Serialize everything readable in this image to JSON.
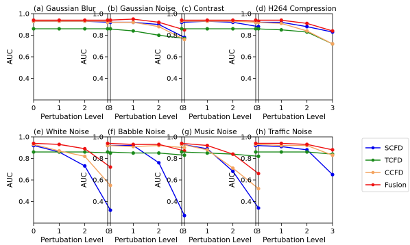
{
  "chart_data": [
    {
      "type": "line",
      "title": "(a) Gaussian Blur",
      "xlabel": "Pertubation Level",
      "ylabel": "AUC",
      "x": [
        0,
        1,
        2,
        3
      ],
      "xlim": [
        0,
        3
      ],
      "ylim": [
        0.2,
        1.0
      ],
      "yticks": [
        0.4,
        0.6,
        0.8,
        1.0
      ],
      "series": [
        {
          "name": "SCFD",
          "values": [
            0.93,
            0.93,
            0.93,
            0.92
          ]
        },
        {
          "name": "TCFD",
          "values": [
            0.86,
            0.86,
            0.86,
            0.86
          ]
        },
        {
          "name": "CCFD",
          "values": [
            0.93,
            0.93,
            0.93,
            0.93
          ]
        },
        {
          "name": "Fusion",
          "values": [
            0.94,
            0.94,
            0.94,
            0.94
          ]
        }
      ]
    },
    {
      "type": "line",
      "title": "(b) Gaussian Noise",
      "xlabel": "Pertubation Level",
      "ylabel": "AUC",
      "x": [
        0,
        1,
        2,
        3
      ],
      "xlim": [
        0,
        3
      ],
      "ylim": [
        0.2,
        1.0
      ],
      "yticks": [
        0.4,
        0.6,
        0.8,
        1.0
      ],
      "series": [
        {
          "name": "SCFD",
          "values": [
            0.92,
            0.92,
            0.9,
            0.78
          ]
        },
        {
          "name": "TCFD",
          "values": [
            0.86,
            0.84,
            0.8,
            0.77
          ]
        },
        {
          "name": "CCFD",
          "values": [
            0.92,
            0.92,
            0.88,
            0.76
          ]
        },
        {
          "name": "Fusion",
          "values": [
            0.94,
            0.95,
            0.92,
            0.85
          ]
        }
      ]
    },
    {
      "type": "line",
      "title": "(c) Contrast",
      "xlabel": "Pertubation Level",
      "ylabel": "AUC",
      "x": [
        0,
        1,
        2,
        3
      ],
      "xlim": [
        0,
        3
      ],
      "ylim": [
        0.2,
        1.0
      ],
      "yticks": [
        0.4,
        0.6,
        0.8,
        1.0
      ],
      "series": [
        {
          "name": "SCFD",
          "values": [
            0.92,
            0.93,
            0.92,
            0.88
          ]
        },
        {
          "name": "TCFD",
          "values": [
            0.86,
            0.86,
            0.86,
            0.86
          ]
        },
        {
          "name": "CCFD",
          "values": [
            0.93,
            0.93,
            0.93,
            0.92
          ]
        },
        {
          "name": "Fusion",
          "values": [
            0.94,
            0.94,
            0.94,
            0.93
          ]
        }
      ]
    },
    {
      "type": "line",
      "title": "(d) H264 Compression",
      "xlabel": "Pertubation Level",
      "ylabel": "AUC",
      "x": [
        0,
        1,
        2,
        3
      ],
      "xlim": [
        0,
        3
      ],
      "ylim": [
        0.2,
        1.0
      ],
      "yticks": [
        0.4,
        0.6,
        0.8,
        1.0
      ],
      "series": [
        {
          "name": "SCFD",
          "values": [
            0.92,
            0.92,
            0.88,
            0.83
          ]
        },
        {
          "name": "TCFD",
          "values": [
            0.86,
            0.85,
            0.83,
            0.72
          ]
        },
        {
          "name": "CCFD",
          "values": [
            0.92,
            0.91,
            0.84,
            0.72
          ]
        },
        {
          "name": "Fusion",
          "values": [
            0.94,
            0.94,
            0.91,
            0.84
          ]
        }
      ]
    },
    {
      "type": "line",
      "title": "(e) White Noise",
      "xlabel": "Pertubation Level",
      "ylabel": "AUC",
      "x": [
        0,
        1,
        2,
        3
      ],
      "xlim": [
        0,
        3
      ],
      "ylim": [
        0.2,
        1.0
      ],
      "yticks": [
        0.4,
        0.6,
        0.8,
        1.0
      ],
      "series": [
        {
          "name": "SCFD",
          "values": [
            0.92,
            0.86,
            0.73,
            0.32
          ]
        },
        {
          "name": "TCFD",
          "values": [
            0.86,
            0.86,
            0.86,
            0.85
          ]
        },
        {
          "name": "CCFD",
          "values": [
            0.93,
            0.87,
            0.82,
            0.55
          ]
        },
        {
          "name": "Fusion",
          "values": [
            0.94,
            0.93,
            0.89,
            0.72
          ]
        }
      ]
    },
    {
      "type": "line",
      "title": "(f) Babble Noise",
      "xlabel": "Pertubation Level",
      "ylabel": "AUC",
      "x": [
        0,
        1,
        2,
        3
      ],
      "xlim": [
        0,
        3
      ],
      "ylim": [
        0.2,
        1.0
      ],
      "yticks": [
        0.4,
        0.6,
        0.8,
        1.0
      ],
      "series": [
        {
          "name": "SCFD",
          "values": [
            0.92,
            0.92,
            0.76,
            0.27
          ]
        },
        {
          "name": "TCFD",
          "values": [
            0.86,
            0.85,
            0.85,
            0.83
          ]
        },
        {
          "name": "CCFD",
          "values": [
            0.92,
            0.91,
            0.92,
            0.9
          ]
        },
        {
          "name": "Fusion",
          "values": [
            0.94,
            0.93,
            0.93,
            0.87
          ]
        }
      ]
    },
    {
      "type": "line",
      "title": "(g) Music Noise",
      "xlabel": "Pertubation Level",
      "ylabel": "AUC",
      "x": [
        0,
        1,
        2,
        3
      ],
      "xlim": [
        0,
        3
      ],
      "ylim": [
        0.2,
        1.0
      ],
      "yticks": [
        0.4,
        0.6,
        0.8,
        1.0
      ],
      "series": [
        {
          "name": "SCFD",
          "values": [
            0.93,
            0.89,
            0.68,
            0.34
          ]
        },
        {
          "name": "TCFD",
          "values": [
            0.86,
            0.85,
            0.84,
            0.82
          ]
        },
        {
          "name": "CCFD",
          "values": [
            0.93,
            0.88,
            0.71,
            0.52
          ]
        },
        {
          "name": "Fusion",
          "values": [
            0.94,
            0.92,
            0.84,
            0.66
          ]
        }
      ]
    },
    {
      "type": "line",
      "title": "(h) Traffic Noise",
      "xlabel": "Pertubation Level",
      "ylabel": "AUC",
      "x": [
        0,
        1,
        2,
        3
      ],
      "xlim": [
        0,
        3
      ],
      "ylim": [
        0.2,
        1.0
      ],
      "yticks": [
        0.4,
        0.6,
        0.8,
        1.0
      ],
      "series": [
        {
          "name": "SCFD",
          "values": [
            0.92,
            0.91,
            0.88,
            0.65
          ]
        },
        {
          "name": "TCFD",
          "values": [
            0.86,
            0.86,
            0.86,
            0.84
          ]
        },
        {
          "name": "CCFD",
          "values": [
            0.93,
            0.92,
            0.92,
            0.83
          ]
        },
        {
          "name": "Fusion",
          "values": [
            0.94,
            0.94,
            0.93,
            0.88
          ]
        }
      ]
    }
  ],
  "legend": {
    "placement": "right",
    "entries": [
      {
        "name": "SCFD",
        "color": "#0000ee"
      },
      {
        "name": "TCFD",
        "color": "#1a8a1a"
      },
      {
        "name": "CCFD",
        "color": "#f4a460"
      },
      {
        "name": "Fusion",
        "color": "#ee1111"
      }
    ]
  },
  "colors": {
    "SCFD": "#0000ee",
    "TCFD": "#1a8a1a",
    "CCFD": "#f4a460",
    "Fusion": "#ee1111"
  }
}
